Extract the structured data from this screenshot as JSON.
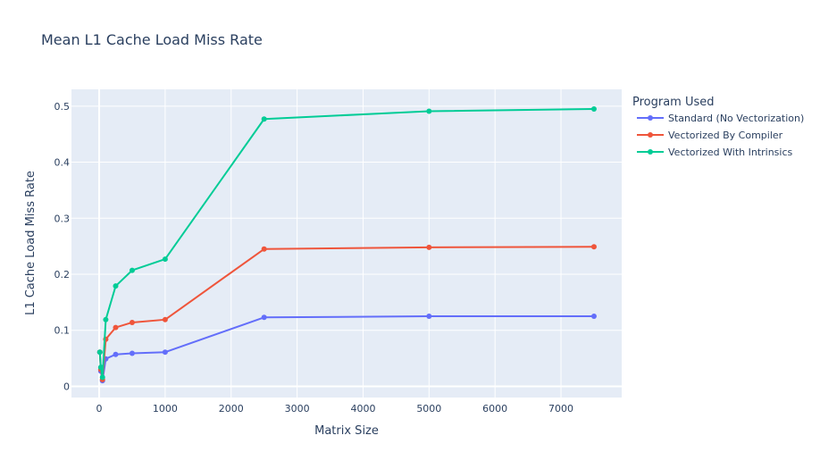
{
  "chart_data": {
    "type": "line",
    "title": "Mean L1 Cache Load Miss Rate",
    "xlabel": "Matrix Size",
    "ylabel": "L1 Cache Load Miss Rate",
    "xlim": [
      -420,
      7920
    ],
    "ylim": [
      -0.02,
      0.53
    ],
    "xticks": [
      0,
      1000,
      2000,
      3000,
      4000,
      5000,
      6000,
      7000
    ],
    "xtick_labels": [
      "0",
      "1000",
      "2000",
      "3000",
      "4000",
      "5000",
      "6000",
      "7000"
    ],
    "yticks": [
      0,
      0.1,
      0.2,
      0.3,
      0.4,
      0.5
    ],
    "ytick_labels": [
      "0",
      "0.1",
      "0.2",
      "0.3",
      "0.4",
      "0.5"
    ],
    "grid": true,
    "legend_title": "Program Used",
    "legend_position": "right",
    "series": [
      {
        "name": "Standard (No Vectorization)",
        "color": "#636efa",
        "x": [
          10,
          25,
          50,
          100,
          250,
          500,
          1000,
          2500,
          5000,
          7500
        ],
        "y": [
          0.061,
          0.027,
          0.01,
          0.049,
          0.057,
          0.059,
          0.061,
          0.123,
          0.125,
          0.125
        ]
      },
      {
        "name": "Vectorized By Compiler",
        "color": "#ef553b",
        "x": [
          10,
          25,
          50,
          100,
          250,
          500,
          1000,
          2500,
          5000,
          7500
        ],
        "y": [
          0.061,
          0.03,
          0.012,
          0.084,
          0.105,
          0.114,
          0.119,
          0.245,
          0.248,
          0.249
        ]
      },
      {
        "name": "Vectorized With Intrinsics",
        "color": "#00cc96",
        "x": [
          10,
          25,
          50,
          100,
          250,
          500,
          1000,
          2500,
          5000,
          7500
        ],
        "y": [
          0.061,
          0.034,
          0.016,
          0.119,
          0.179,
          0.207,
          0.227,
          0.477,
          0.491,
          0.495
        ]
      }
    ]
  }
}
